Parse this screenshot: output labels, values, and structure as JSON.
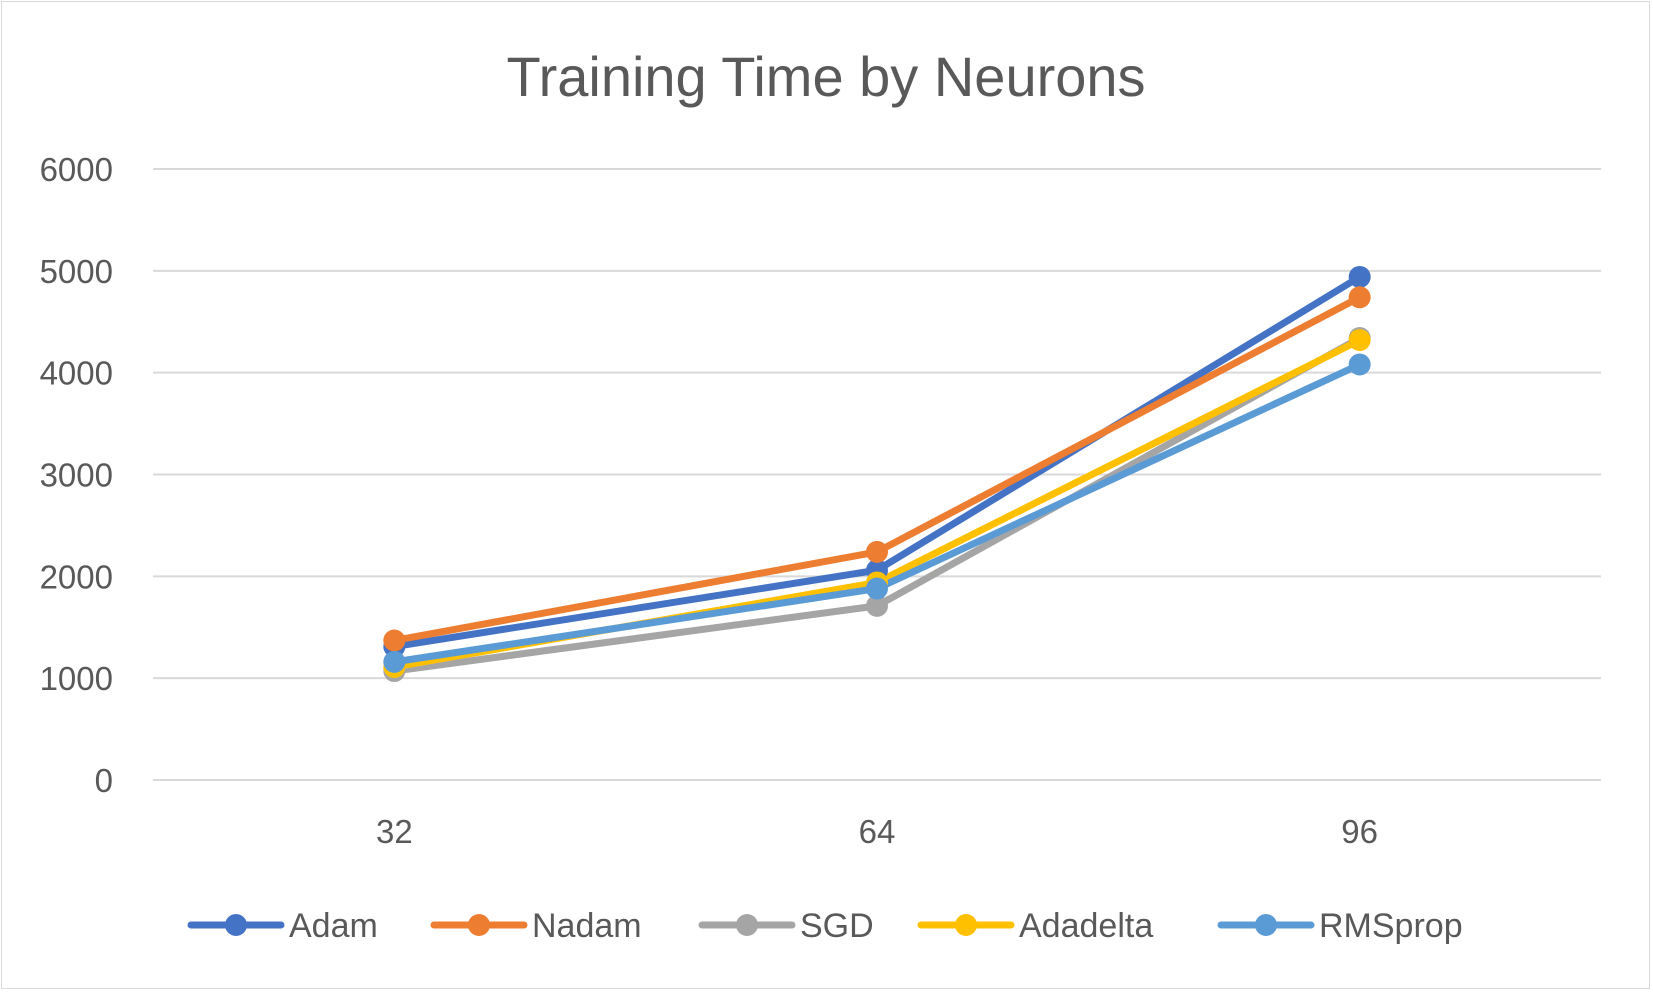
{
  "chart_data": {
    "type": "line",
    "title": "Training Time by Neurons",
    "xlabel": "",
    "ylabel": "",
    "categories": [
      "32",
      "64",
      "96"
    ],
    "y_ticks": [
      "0",
      "1000",
      "2000",
      "3000",
      "4000",
      "5000",
      "6000"
    ],
    "ylim": [
      0,
      6000
    ],
    "grid": true,
    "legend_position": "bottom",
    "series": [
      {
        "name": "Adam",
        "color": "#4472c4",
        "values": [
          1310,
          2060,
          4940
        ]
      },
      {
        "name": "Nadam",
        "color": "#ed7d31",
        "values": [
          1370,
          2240,
          4740
        ]
      },
      {
        "name": "SGD",
        "color": "#a5a5a5",
        "values": [
          1070,
          1710,
          4340
        ]
      },
      {
        "name": "Adadelta",
        "color": "#ffc000",
        "values": [
          1110,
          1940,
          4320
        ]
      },
      {
        "name": "RMSprop",
        "color": "#5b9bd5",
        "values": [
          1160,
          1880,
          4080
        ]
      }
    ]
  }
}
